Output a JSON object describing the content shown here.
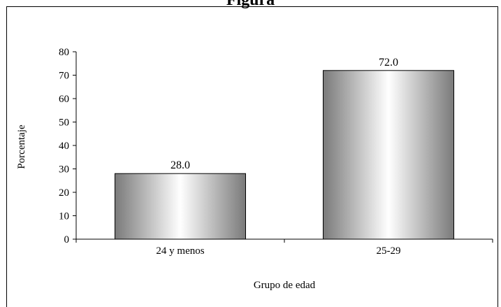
{
  "chart_data": {
    "type": "bar",
    "title": "Figura",
    "xlabel": "Grupo de edad",
    "ylabel": "Porcentaje",
    "categories": [
      "24 y menos",
      "25-29"
    ],
    "values": [
      28.0,
      72.0
    ],
    "value_labels": [
      "28.0",
      "72.0"
    ],
    "ylim": [
      0,
      80
    ],
    "yticks": [
      0,
      10,
      20,
      30,
      40,
      50,
      60,
      70,
      80
    ],
    "grid": false,
    "legend": "none",
    "bar_gradient": [
      "#7a7a7a",
      "#ffffff",
      "#7a7a7a"
    ]
  }
}
